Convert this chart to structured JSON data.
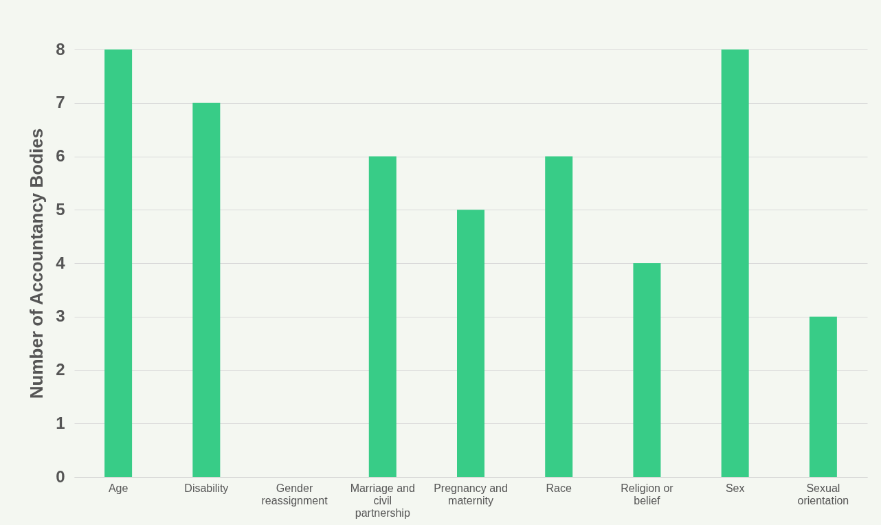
{
  "chart_data": {
    "type": "bar",
    "ylabel": "Number of Accountancy Bodies",
    "categories": [
      "Age",
      "Disability",
      "Gender reassignment",
      "Marriage and civil partnership",
      "Pregnancy and maternity",
      "Race",
      "Religion or belief",
      "Sex",
      "Sexual orientation"
    ],
    "values": [
      8,
      7,
      0,
      6,
      5,
      6,
      4,
      8,
      3
    ],
    "color": "#38cc87",
    "ylim": [
      0,
      8
    ],
    "yticks": [
      0,
      1,
      2,
      3,
      4,
      5,
      6,
      7,
      8
    ],
    "grid": "y"
  }
}
